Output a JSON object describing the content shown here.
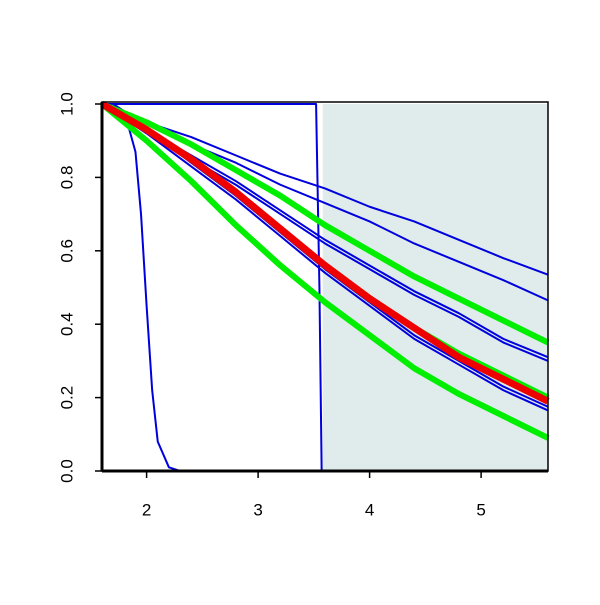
{
  "chart_data": {
    "type": "line",
    "xlim": [
      1.6,
      5.6
    ],
    "ylim": [
      0,
      1
    ],
    "xticks": [
      2,
      3,
      4,
      5
    ],
    "yticks": [
      {
        "value": 0,
        "label": "0.0"
      },
      0.2,
      0.4,
      0.6,
      0.8,
      {
        "value": 1,
        "label": "1.0"
      }
    ],
    "shaded_xrange": [
      3.58,
      5.6
    ],
    "shade_color": "#e0ecec",
    "series": [
      {
        "color": "#0000dd",
        "line_width": 2,
        "x": [
          1.6,
          1.7,
          1.8,
          1.9,
          1.95,
          2.0,
          2.05,
          2.1,
          2.2,
          2.3,
          5.6
        ],
        "values": [
          1,
          1,
          0.98,
          0.87,
          0.7,
          0.45,
          0.22,
          0.08,
          0.01,
          0,
          0
        ]
      },
      {
        "color": "#0000dd",
        "line_width": 2,
        "x": [
          1.6,
          3.52,
          3.55,
          3.57,
          5.6
        ],
        "values": [
          1,
          1,
          0.5,
          0,
          0
        ]
      },
      {
        "color": "#0000dd",
        "line_width": 2,
        "x": [
          1.6,
          2.0,
          2.4,
          2.8,
          3.2,
          3.6,
          4.0,
          4.4,
          4.8,
          5.2,
          5.6
        ],
        "values": [
          1,
          0.95,
          0.91,
          0.86,
          0.81,
          0.77,
          0.72,
          0.68,
          0.63,
          0.58,
          0.535
        ]
      },
      {
        "color": "#0000dd",
        "line_width": 2,
        "x": [
          1.6,
          2.0,
          2.4,
          2.8,
          3.2,
          3.6,
          4.0,
          4.4,
          4.8,
          5.2,
          5.6
        ],
        "values": [
          1,
          0.95,
          0.89,
          0.84,
          0.78,
          0.73,
          0.68,
          0.62,
          0.57,
          0.52,
          0.465
        ]
      },
      {
        "color": "#0000dd",
        "line_width": 2,
        "x": [
          1.6,
          2.0,
          2.4,
          2.8,
          3.2,
          3.6,
          4.0,
          4.4,
          4.8,
          5.2,
          5.6
        ],
        "values": [
          1,
          0.93,
          0.86,
          0.79,
          0.71,
          0.63,
          0.56,
          0.49,
          0.43,
          0.36,
          0.31
        ]
      },
      {
        "color": "#0000dd",
        "line_width": 2,
        "x": [
          1.6,
          2.0,
          2.4,
          2.8,
          3.2,
          3.6,
          4.0,
          4.4,
          4.8,
          5.2,
          5.6
        ],
        "values": [
          1,
          0.93,
          0.85,
          0.78,
          0.7,
          0.62,
          0.55,
          0.48,
          0.42,
          0.35,
          0.3
        ]
      },
      {
        "color": "#0000dd",
        "line_width": 2,
        "x": [
          1.6,
          2.0,
          2.4,
          2.8,
          3.2,
          3.6,
          4.0,
          4.4,
          4.8,
          5.2,
          5.6
        ],
        "values": [
          1,
          0.93,
          0.84,
          0.75,
          0.65,
          0.55,
          0.46,
          0.37,
          0.3,
          0.23,
          0.175
        ]
      },
      {
        "color": "#0000dd",
        "line_width": 2,
        "x": [
          1.6,
          2.0,
          2.4,
          2.8,
          3.2,
          3.6,
          4.0,
          4.4,
          4.8,
          5.2,
          5.6
        ],
        "values": [
          1,
          0.92,
          0.83,
          0.74,
          0.64,
          0.54,
          0.45,
          0.36,
          0.29,
          0.22,
          0.165
        ]
      },
      {
        "color": "#00ee00",
        "line_width": 6,
        "x": [
          1.6,
          2.0,
          2.4,
          2.8,
          3.2,
          3.6,
          4.0,
          4.4,
          4.8,
          5.2,
          5.6
        ],
        "values": [
          1,
          0.95,
          0.89,
          0.82,
          0.75,
          0.67,
          0.6,
          0.53,
          0.47,
          0.41,
          0.35
        ]
      },
      {
        "color": "#00ee00",
        "line_width": 6,
        "x": [
          1.6,
          2.0,
          2.4,
          2.8,
          3.2,
          3.6,
          4.0,
          4.4,
          4.8,
          5.2,
          5.6
        ],
        "values": [
          1,
          0.93,
          0.85,
          0.76,
          0.66,
          0.56,
          0.47,
          0.39,
          0.32,
          0.26,
          0.2
        ]
      },
      {
        "color": "#00ee00",
        "line_width": 6,
        "x": [
          1.6,
          2.0,
          2.4,
          2.8,
          3.2,
          3.6,
          4.0,
          4.4,
          4.8,
          5.2,
          5.6
        ],
        "values": [
          1,
          0.9,
          0.79,
          0.67,
          0.56,
          0.46,
          0.37,
          0.28,
          0.21,
          0.15,
          0.09
        ]
      },
      {
        "color": "#ee0000",
        "line_width": 7,
        "x": [
          1.6,
          2.0,
          2.4,
          2.8,
          3.2,
          3.6,
          4.0,
          4.4,
          4.8,
          5.2,
          5.6
        ],
        "values": [
          1,
          0.93,
          0.85,
          0.76,
          0.66,
          0.56,
          0.47,
          0.39,
          0.31,
          0.25,
          0.19
        ]
      }
    ]
  }
}
